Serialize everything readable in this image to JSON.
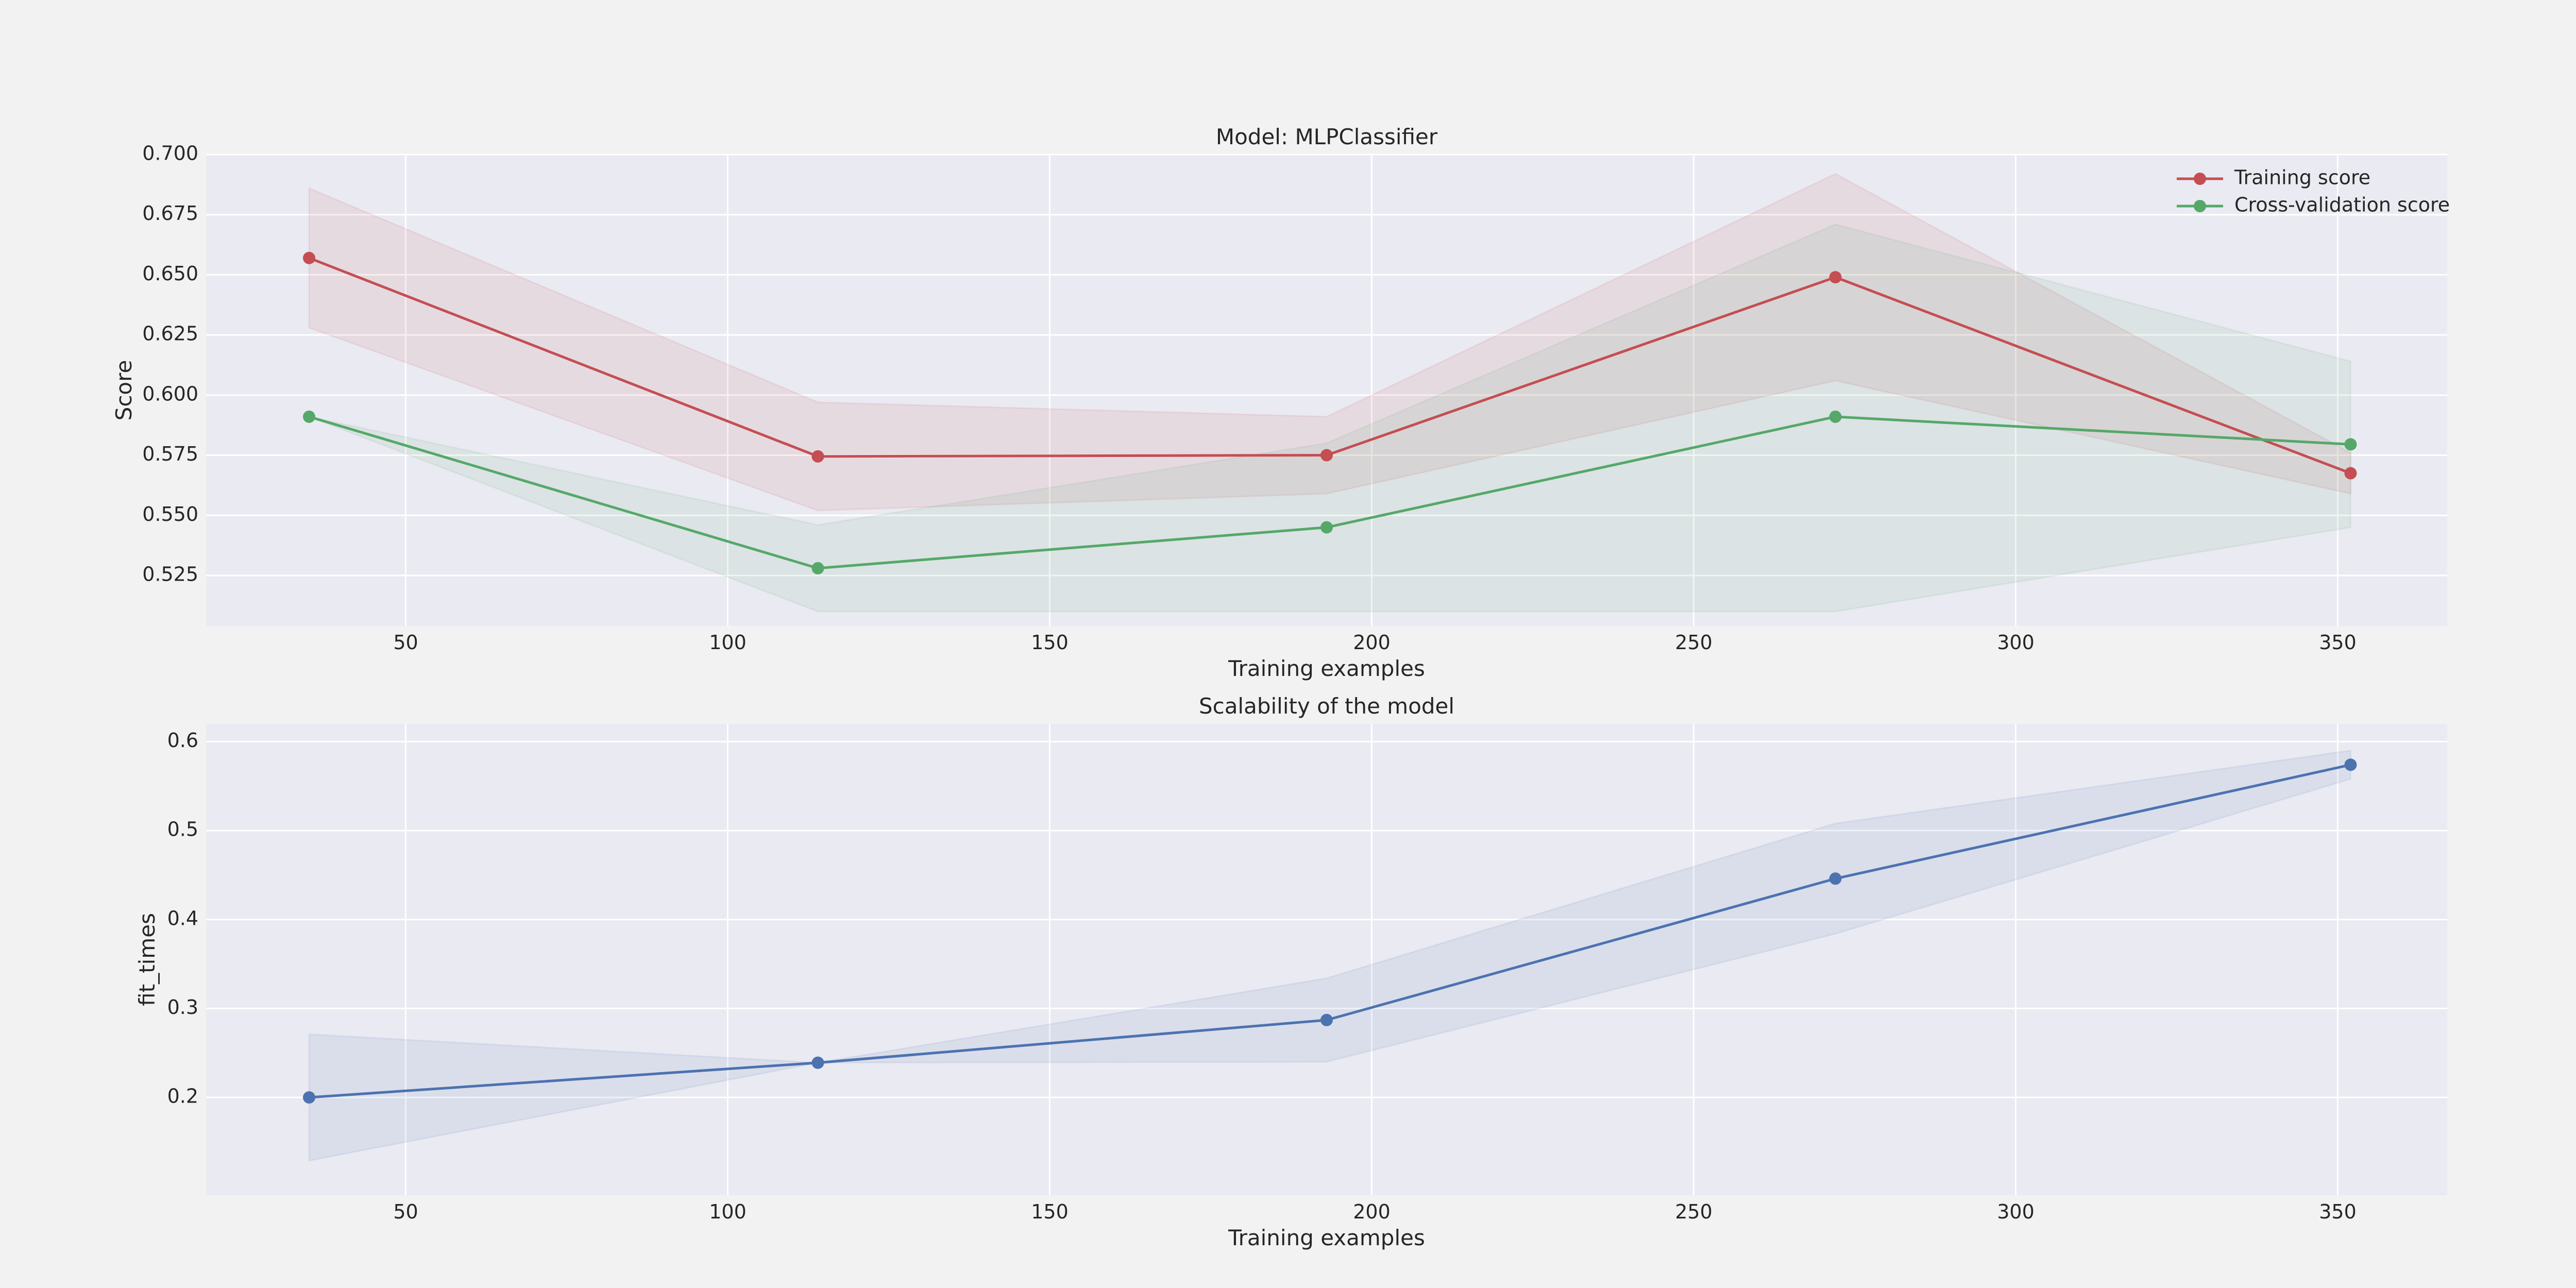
{
  "chart_data": [
    {
      "type": "line",
      "title": "Model: MLPClassifier",
      "xlabel": "Training examples",
      "ylabel": "Score",
      "xlim": [
        19,
        367
      ],
      "ylim": [
        0.504,
        0.7
      ],
      "x_ticks": [
        50,
        100,
        150,
        200,
        250,
        300,
        350
      ],
      "y_ticks": [
        0.525,
        0.55,
        0.575,
        0.6,
        0.625,
        0.65,
        0.675,
        0.7
      ],
      "y_tick_labels": [
        "0.525",
        "0.550",
        "0.575",
        "0.600",
        "0.625",
        "0.650",
        "0.675",
        "0.700"
      ],
      "grid": true,
      "legend": "top-right",
      "x": [
        35,
        114,
        193,
        272,
        352
      ],
      "series": [
        {
          "name": "Training score",
          "color": "#c44e52",
          "values": [
            0.657,
            0.5745,
            0.575,
            0.649,
            0.5675
          ],
          "band_upper": [
            0.686,
            0.597,
            0.591,
            0.692,
            0.576
          ],
          "band_lower": [
            0.628,
            0.552,
            0.559,
            0.606,
            0.559
          ]
        },
        {
          "name": "Cross-validation score",
          "color": "#55a868",
          "values": [
            0.591,
            0.528,
            0.545,
            0.591,
            0.5795
          ],
          "band_upper": [
            0.591,
            0.546,
            0.58,
            0.671,
            0.614
          ],
          "band_lower": [
            0.591,
            0.51,
            0.51,
            0.51,
            0.545
          ]
        }
      ]
    },
    {
      "type": "line",
      "title": "Scalability of the model",
      "xlabel": "Training examples",
      "ylabel": "fit_times",
      "xlim": [
        19,
        367
      ],
      "ylim": [
        0.09,
        0.62
      ],
      "x_ticks": [
        50,
        100,
        150,
        200,
        250,
        300,
        350
      ],
      "y_ticks": [
        0.2,
        0.3,
        0.4,
        0.5,
        0.6
      ],
      "y_tick_labels": [
        "0.2",
        "0.3",
        "0.4",
        "0.5",
        "0.6"
      ],
      "grid": true,
      "x": [
        35,
        114,
        193,
        272,
        352
      ],
      "series": [
        {
          "name": "fit_times",
          "color": "#4c72b0",
          "values": [
            0.2,
            0.239,
            0.287,
            0.446,
            0.574
          ],
          "band_upper": [
            0.271,
            0.239,
            0.334,
            0.508,
            0.59
          ],
          "band_lower": [
            0.129,
            0.239,
            0.24,
            0.384,
            0.558
          ]
        }
      ]
    }
  ]
}
